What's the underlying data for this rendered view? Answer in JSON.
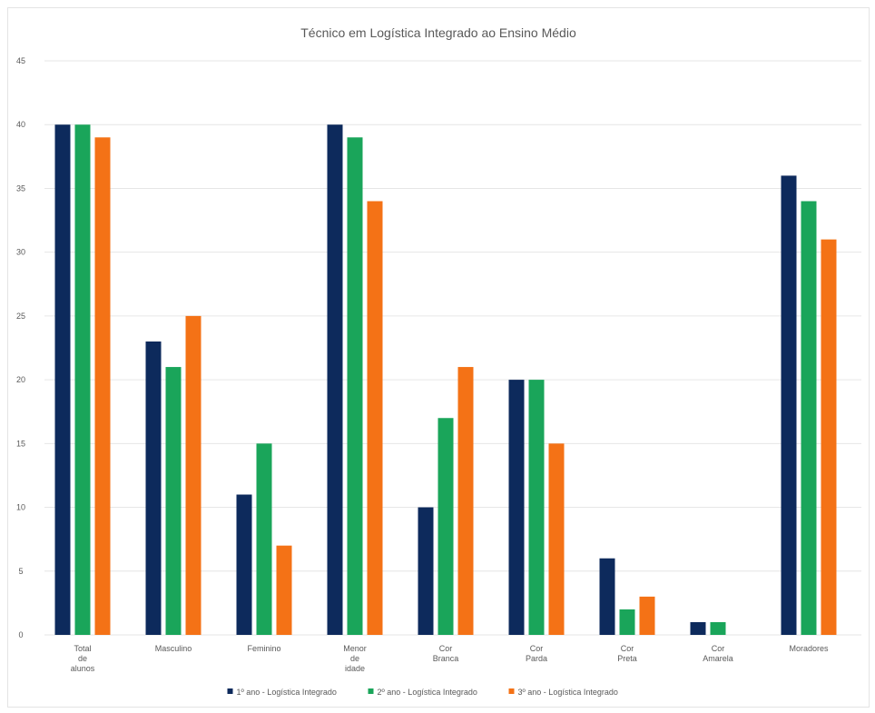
{
  "chart_data": {
    "type": "bar",
    "title": "Técnico em Logística Integrado ao Ensino Médio",
    "xlabel": "",
    "ylabel": "",
    "ylim": [
      0,
      45
    ],
    "yticks": [
      0,
      5,
      10,
      15,
      20,
      25,
      30,
      35,
      40,
      45
    ],
    "grid": true,
    "legend_position": "bottom",
    "categories": [
      [
        "Total",
        "de",
        "alunos"
      ],
      [
        "Masculino"
      ],
      [
        "Feminino"
      ],
      [
        "Menor",
        "de",
        "idade"
      ],
      [
        "Cor",
        "Branca"
      ],
      [
        "Cor",
        "Parda"
      ],
      [
        "Cor",
        "Preta"
      ],
      [
        "Cor",
        "Amarela"
      ],
      [
        "Moradores"
      ]
    ],
    "series": [
      {
        "name": "1º ano - Logística Integrado",
        "color": "#0d2a5c",
        "values": [
          40,
          23,
          11,
          40,
          10,
          20,
          6,
          1,
          36
        ]
      },
      {
        "name": "2º ano - Logística Integrado",
        "color": "#1aa55a",
        "values": [
          40,
          21,
          15,
          39,
          17,
          20,
          2,
          1,
          34
        ]
      },
      {
        "name": "3º ano - Logística Integrado",
        "color": "#f47216",
        "values": [
          39,
          25,
          7,
          34,
          21,
          15,
          3,
          0,
          31
        ]
      }
    ]
  }
}
